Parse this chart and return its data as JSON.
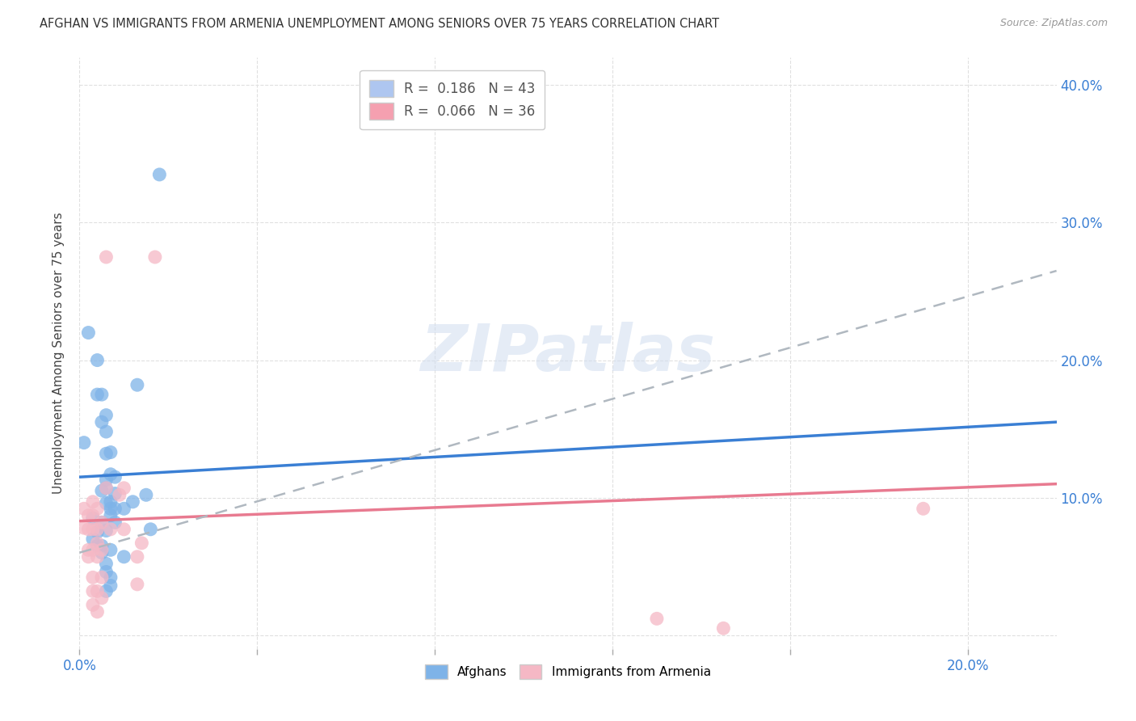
{
  "title": "AFGHAN VS IMMIGRANTS FROM ARMENIA UNEMPLOYMENT AMONG SENIORS OVER 75 YEARS CORRELATION CHART",
  "source": "Source: ZipAtlas.com",
  "ylabel": "Unemployment Among Seniors over 75 years",
  "xlim": [
    0.0,
    0.22
  ],
  "ylim": [
    -0.01,
    0.42
  ],
  "xticks": [
    0.0,
    0.04,
    0.08,
    0.12,
    0.16,
    0.2
  ],
  "xtick_labels": [
    "0.0%",
    "",
    "",
    "",
    "",
    "20.0%"
  ],
  "yticks_right": [
    0.1,
    0.2,
    0.3,
    0.4
  ],
  "ytick_right_labels": [
    "10.0%",
    "20.0%",
    "30.0%",
    "40.0%"
  ],
  "legend_items": [
    {
      "label": "R =  0.186   N = 43",
      "color": "#aec6f0"
    },
    {
      "label": "R =  0.066   N = 36",
      "color": "#f5a0b0"
    }
  ],
  "legend_labels_bottom": [
    "Afghans",
    "Immigrants from Armenia"
  ],
  "afghan_color": "#7eb3e8",
  "armenia_color": "#f5b8c5",
  "trendline_afghan_color": "#3a7fd4",
  "trendline_armenia_color": "#e87a90",
  "trendline_dashed_color": "#b0b8c0",
  "watermark_text": "ZIPatlas",
  "afghan_points": [
    [
      0.001,
      0.14
    ],
    [
      0.002,
      0.22
    ],
    [
      0.003,
      0.085
    ],
    [
      0.003,
      0.07
    ],
    [
      0.004,
      0.175
    ],
    [
      0.004,
      0.2
    ],
    [
      0.004,
      0.065
    ],
    [
      0.004,
      0.075
    ],
    [
      0.005,
      0.155
    ],
    [
      0.005,
      0.175
    ],
    [
      0.005,
      0.105
    ],
    [
      0.005,
      0.082
    ],
    [
      0.005,
      0.065
    ],
    [
      0.005,
      0.06
    ],
    [
      0.006,
      0.16
    ],
    [
      0.006,
      0.148
    ],
    [
      0.006,
      0.132
    ],
    [
      0.006,
      0.113
    ],
    [
      0.006,
      0.107
    ],
    [
      0.006,
      0.096
    ],
    [
      0.006,
      0.076
    ],
    [
      0.006,
      0.052
    ],
    [
      0.006,
      0.046
    ],
    [
      0.006,
      0.032
    ],
    [
      0.007,
      0.133
    ],
    [
      0.007,
      0.117
    ],
    [
      0.007,
      0.097
    ],
    [
      0.007,
      0.092
    ],
    [
      0.007,
      0.087
    ],
    [
      0.007,
      0.062
    ],
    [
      0.007,
      0.042
    ],
    [
      0.007,
      0.036
    ],
    [
      0.008,
      0.103
    ],
    [
      0.008,
      0.092
    ],
    [
      0.008,
      0.082
    ],
    [
      0.01,
      0.092
    ],
    [
      0.01,
      0.057
    ],
    [
      0.012,
      0.097
    ],
    [
      0.013,
      0.182
    ],
    [
      0.015,
      0.102
    ],
    [
      0.016,
      0.077
    ],
    [
      0.018,
      0.335
    ],
    [
      0.008,
      0.115
    ]
  ],
  "armenia_points": [
    [
      0.001,
      0.092
    ],
    [
      0.001,
      0.078
    ],
    [
      0.002,
      0.087
    ],
    [
      0.002,
      0.077
    ],
    [
      0.002,
      0.062
    ],
    [
      0.002,
      0.057
    ],
    [
      0.003,
      0.097
    ],
    [
      0.003,
      0.087
    ],
    [
      0.003,
      0.077
    ],
    [
      0.003,
      0.062
    ],
    [
      0.003,
      0.042
    ],
    [
      0.003,
      0.032
    ],
    [
      0.003,
      0.022
    ],
    [
      0.004,
      0.092
    ],
    [
      0.004,
      0.077
    ],
    [
      0.004,
      0.067
    ],
    [
      0.004,
      0.057
    ],
    [
      0.004,
      0.032
    ],
    [
      0.004,
      0.017
    ],
    [
      0.005,
      0.082
    ],
    [
      0.005,
      0.062
    ],
    [
      0.005,
      0.042
    ],
    [
      0.005,
      0.027
    ],
    [
      0.006,
      0.275
    ],
    [
      0.006,
      0.107
    ],
    [
      0.007,
      0.077
    ],
    [
      0.009,
      0.102
    ],
    [
      0.01,
      0.107
    ],
    [
      0.01,
      0.077
    ],
    [
      0.013,
      0.057
    ],
    [
      0.013,
      0.037
    ],
    [
      0.014,
      0.067
    ],
    [
      0.017,
      0.275
    ],
    [
      0.19,
      0.092
    ],
    [
      0.13,
      0.012
    ],
    [
      0.145,
      0.005
    ]
  ],
  "afghan_trend_x": [
    0.0,
    0.22
  ],
  "afghan_trend_y": [
    0.115,
    0.155
  ],
  "armenia_trend_x": [
    0.0,
    0.22
  ],
  "armenia_trend_y": [
    0.083,
    0.11
  ],
  "dashed_trend_x": [
    0.0,
    0.22
  ],
  "dashed_trend_y": [
    0.06,
    0.265
  ],
  "background_color": "#ffffff",
  "grid_color": "#e0e0e0",
  "tick_color": "#3a7fd4"
}
